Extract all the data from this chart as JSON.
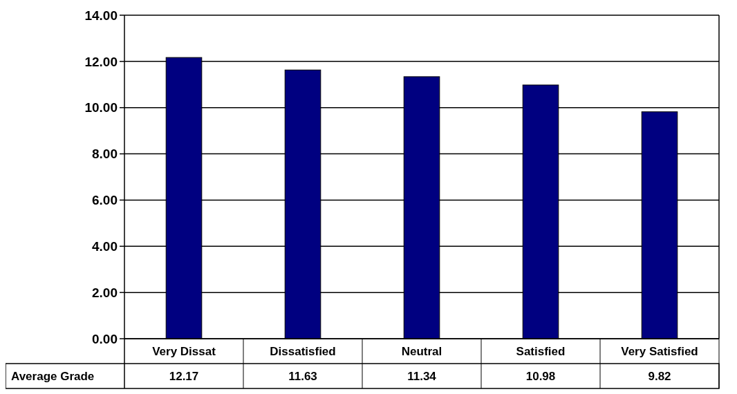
{
  "chart_data": {
    "type": "bar",
    "categories": [
      "Very Dissat",
      "Dissatisfied",
      "Neutral",
      "Satisfied",
      "Very Satisfied"
    ],
    "series": [
      {
        "name": "Average Grade",
        "color": "#000080",
        "values": [
          12.17,
          11.63,
          11.34,
          10.98,
          9.82
        ]
      }
    ],
    "ylim": [
      0,
      14
    ],
    "yticks": [
      {
        "value": 0,
        "label": "0.00"
      },
      {
        "value": 2,
        "label": "2.00"
      },
      {
        "value": 4,
        "label": "4.00"
      },
      {
        "value": 6,
        "label": "6.00"
      },
      {
        "value": 8,
        "label": "8.00"
      },
      {
        "value": 10,
        "label": "10.00"
      },
      {
        "value": 12,
        "label": "12.00"
      },
      {
        "value": 14,
        "label": "14.00"
      }
    ],
    "grid": "y",
    "data_labels": true
  }
}
